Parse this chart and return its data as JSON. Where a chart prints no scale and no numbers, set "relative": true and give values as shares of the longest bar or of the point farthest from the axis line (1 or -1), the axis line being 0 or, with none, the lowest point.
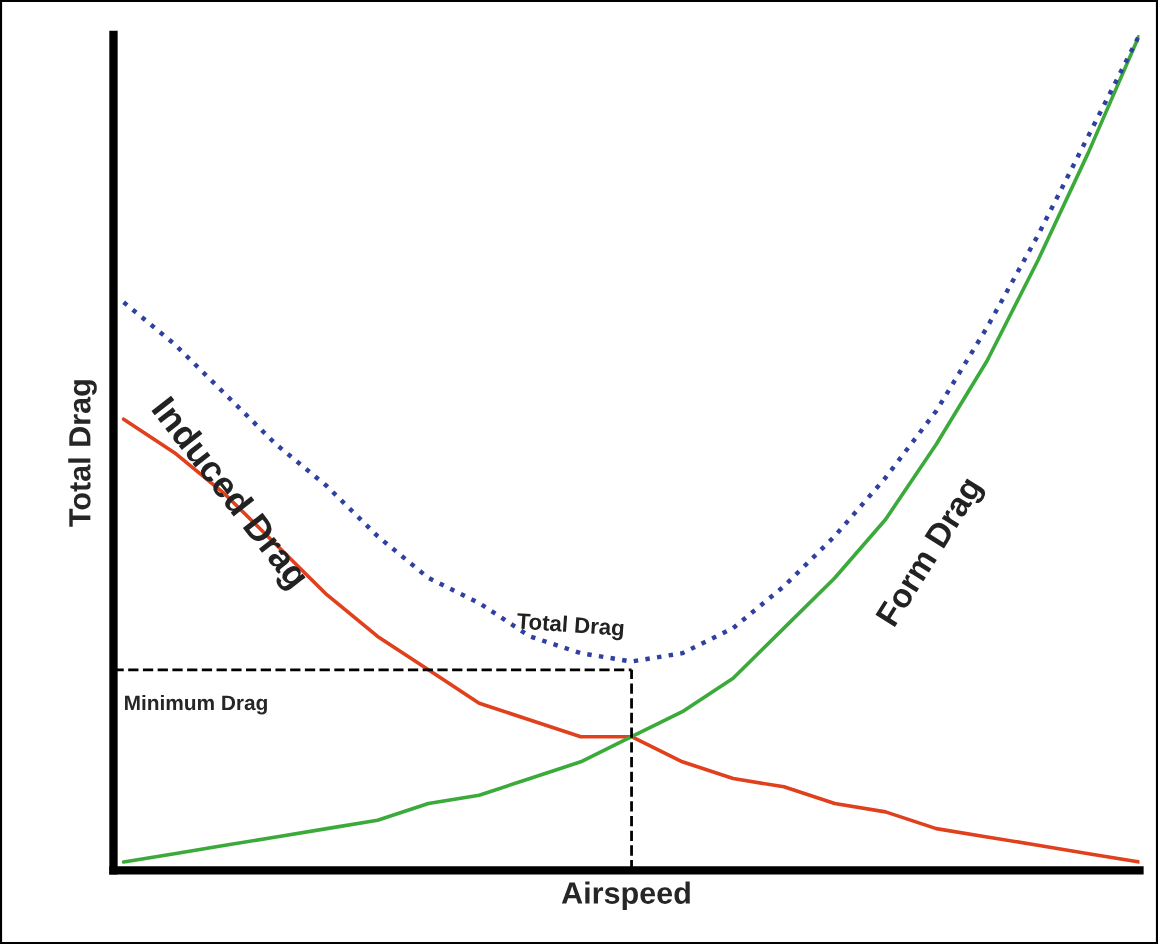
{
  "chart_data": {
    "type": "line",
    "relative": true,
    "xlabel": "Airspeed",
    "ylabel": "Total Drag",
    "legend": false,
    "categories": [
      null,
      null,
      null,
      null,
      null,
      null,
      null,
      null,
      null,
      null,
      null,
      null,
      null,
      null,
      null,
      null,
      null,
      null,
      null,
      null,
      null
    ],
    "series": [
      {
        "name": "Induced Drag",
        "color": "#e0401c",
        "line_style": "solid",
        "values": [
          0.54,
          0.5,
          0.45,
          0.39,
          0.33,
          0.28,
          0.24,
          0.2,
          0.18,
          0.16,
          0.16,
          0.13,
          0.11,
          0.1,
          0.08,
          0.07,
          0.05,
          0.04,
          0.03,
          0.02,
          0.01
        ]
      },
      {
        "name": "Form Drag",
        "color": "#3aaa3a",
        "line_style": "solid",
        "values": [
          0.01,
          0.02,
          0.03,
          0.04,
          0.05,
          0.06,
          0.08,
          0.09,
          0.11,
          0.13,
          0.16,
          0.19,
          0.23,
          0.29,
          0.35,
          0.42,
          0.51,
          0.61,
          0.73,
          0.86,
          1
        ]
      },
      {
        "name": "Total Drag",
        "color": "#3040a0",
        "line_style": "dotted",
        "values": [
          0.68,
          0.63,
          0.57,
          0.51,
          0.46,
          0.4,
          0.35,
          0.32,
          0.28,
          0.26,
          0.25,
          0.26,
          0.29,
          0.34,
          0.4,
          0.47,
          0.55,
          0.65,
          0.76,
          0.88,
          1
        ]
      }
    ],
    "ref_lines": [
      {
        "axis": "y",
        "value": 0.24,
        "label": "Minimum Drag",
        "color": "#000000",
        "line_style": "dashed"
      }
    ]
  }
}
